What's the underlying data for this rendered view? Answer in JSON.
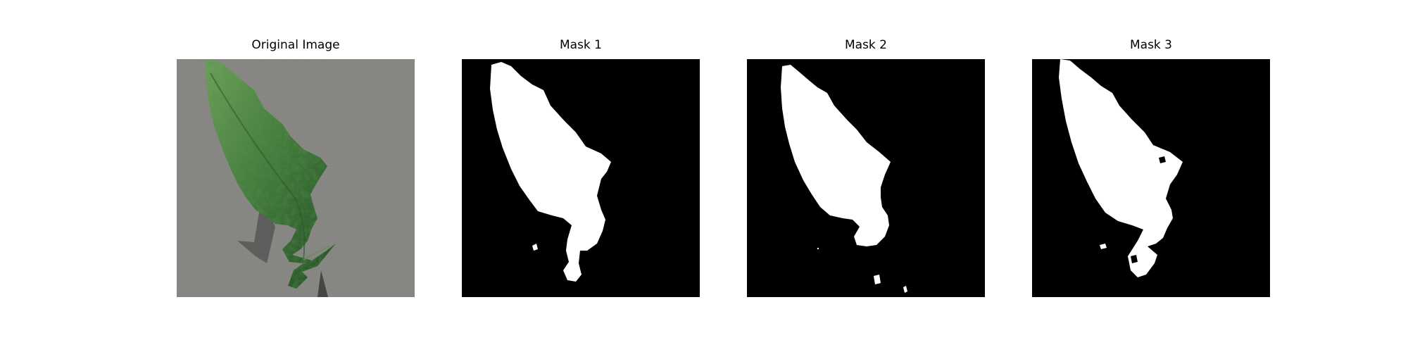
{
  "figure": {
    "panels": [
      {
        "title": "Original Image",
        "kind": "photo",
        "subject": "green leaf on gray surface"
      },
      {
        "title": "Mask 1",
        "kind": "mask"
      },
      {
        "title": "Mask 2",
        "kind": "mask"
      },
      {
        "title": "Mask 3",
        "kind": "mask"
      }
    ]
  },
  "colors": {
    "background": "#ffffff",
    "mask_background": "#000000",
    "mask_foreground": "#ffffff",
    "surface_gray": "#8f8e8b",
    "leaf_dark": "#1f4a22",
    "leaf_mid": "#3f7a3a",
    "leaf_light": "#6fa35a",
    "shadow": "#3c3c3c"
  }
}
